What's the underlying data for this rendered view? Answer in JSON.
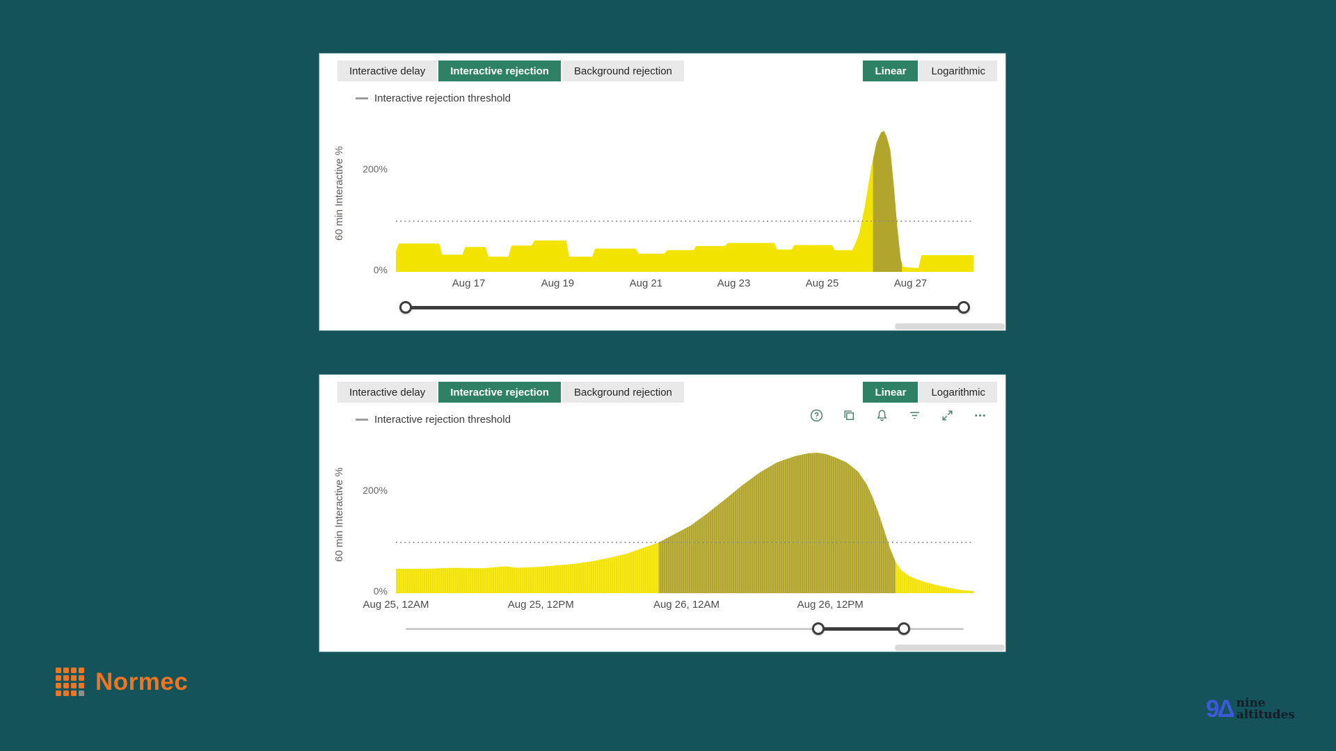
{
  "page": {
    "colors": {
      "background": "#14535a",
      "accent_green": "#2e8165",
      "panel_background": "#ffffff",
      "normec_orange": "#ee7623",
      "na_blue": "#3b5bd6"
    }
  },
  "panels": [
    {
      "tabs": [
        {
          "label": "Interactive delay",
          "active": false
        },
        {
          "label": "Interactive rejection",
          "active": true
        },
        {
          "label": "Background rejection",
          "active": false
        }
      ],
      "scale_tabs": [
        {
          "label": "Linear",
          "active": true
        },
        {
          "label": "Logarithmic",
          "active": false
        }
      ],
      "legend_label": "Interactive rejection threshold",
      "y_axis_label": "60 min Interactive %",
      "y_tick_top": "200%",
      "y_tick_bottom": "0%"
    },
    {
      "tabs": [
        {
          "label": "Interactive delay",
          "active": false
        },
        {
          "label": "Interactive rejection",
          "active": true
        },
        {
          "label": "Background rejection",
          "active": false
        }
      ],
      "scale_tabs": [
        {
          "label": "Linear",
          "active": true
        },
        {
          "label": "Logarithmic",
          "active": false
        }
      ],
      "legend_label": "Interactive rejection threshold",
      "y_axis_label": "60 min Interactive %",
      "y_tick_top": "200%",
      "y_tick_bottom": "0%",
      "toolbar_icons": [
        "help",
        "copy",
        "alert",
        "filter",
        "focus-mode",
        "more-options"
      ]
    }
  ],
  "chart_data": [
    {
      "type": "area",
      "title": "",
      "ylabel": "60 min Interactive %",
      "units": "percent",
      "ylim": [
        0,
        310
      ],
      "grid": false,
      "y_ticks": [
        {
          "label": "200%",
          "value": 200
        },
        {
          "label": "0%",
          "value": 0
        }
      ],
      "threshold": {
        "label": "Interactive rejection threshold",
        "value": 100
      },
      "x_ticks": [
        {
          "label": "Aug 17",
          "pos": 0.126
        },
        {
          "label": "Aug 19",
          "pos": 0.28
        },
        {
          "label": "Aug 21",
          "pos": 0.433
        },
        {
          "label": "Aug 23",
          "pos": 0.585
        },
        {
          "label": "Aug 25",
          "pos": 0.738
        },
        {
          "label": "Aug 27",
          "pos": 0.891
        }
      ],
      "points": [
        [
          0,
          40
        ],
        [
          0.005,
          56
        ],
        [
          0.075,
          56
        ],
        [
          0.08,
          34
        ],
        [
          0.115,
          34
        ],
        [
          0.12,
          49
        ],
        [
          0.155,
          49
        ],
        [
          0.16,
          30
        ],
        [
          0.195,
          30
        ],
        [
          0.2,
          52
        ],
        [
          0.235,
          52
        ],
        [
          0.24,
          62
        ],
        [
          0.295,
          62
        ],
        [
          0.3,
          30
        ],
        [
          0.34,
          30
        ],
        [
          0.345,
          46
        ],
        [
          0.415,
          46
        ],
        [
          0.42,
          36
        ],
        [
          0.465,
          36
        ],
        [
          0.47,
          43
        ],
        [
          0.515,
          43
        ],
        [
          0.52,
          51
        ],
        [
          0.57,
          51
        ],
        [
          0.575,
          57
        ],
        [
          0.655,
          57
        ],
        [
          0.66,
          44
        ],
        [
          0.685,
          44
        ],
        [
          0.69,
          53
        ],
        [
          0.755,
          53
        ],
        [
          0.76,
          43
        ],
        [
          0.79,
          43
        ],
        [
          0.795,
          55
        ],
        [
          0.802,
          75
        ],
        [
          0.812,
          130
        ],
        [
          0.822,
          200
        ],
        [
          0.832,
          255
        ],
        [
          0.84,
          275
        ],
        [
          0.845,
          278
        ],
        [
          0.85,
          266
        ],
        [
          0.856,
          240
        ],
        [
          0.862,
          170
        ],
        [
          0.868,
          90
        ],
        [
          0.874,
          25
        ],
        [
          0.878,
          10
        ],
        [
          0.9,
          8
        ],
        [
          0.905,
          8
        ],
        [
          0.91,
          33
        ],
        [
          1,
          33
        ]
      ],
      "highlight_band": [
        0.826,
        0.876
      ],
      "striped": false,
      "colors": {
        "area": "#f2e400",
        "highlight": "#b1a52c",
        "threshold": "#8a8a8a"
      },
      "slider": {
        "handles": [
          0,
          1
        ],
        "style": "full"
      }
    },
    {
      "type": "area",
      "title": "",
      "ylabel": "60 min Interactive %",
      "units": "percent",
      "ylim": [
        0,
        310
      ],
      "grid": false,
      "y_ticks": [
        {
          "label": "200%",
          "value": 200
        },
        {
          "label": "0%",
          "value": 0
        }
      ],
      "threshold": {
        "label": "Interactive rejection threshold",
        "value": 100
      },
      "x_ticks": [
        {
          "label": "Aug 25, 12AM",
          "pos": 0.0
        },
        {
          "label": "Aug 25, 12PM",
          "pos": 0.251
        },
        {
          "label": "Aug 26, 12AM",
          "pos": 0.503
        },
        {
          "label": "Aug 26, 12PM",
          "pos": 0.752
        }
      ],
      "points": [
        [
          0,
          48
        ],
        [
          0.05,
          48
        ],
        [
          0.1,
          50
        ],
        [
          0.15,
          49
        ],
        [
          0.19,
          53
        ],
        [
          0.21,
          50
        ],
        [
          0.25,
          52
        ],
        [
          0.28,
          55
        ],
        [
          0.31,
          58
        ],
        [
          0.34,
          63
        ],
        [
          0.37,
          70
        ],
        [
          0.4,
          78
        ],
        [
          0.43,
          90
        ],
        [
          0.455,
          100
        ],
        [
          0.48,
          115
        ],
        [
          0.51,
          133
        ],
        [
          0.54,
          158
        ],
        [
          0.57,
          185
        ],
        [
          0.6,
          213
        ],
        [
          0.63,
          238
        ],
        [
          0.66,
          258
        ],
        [
          0.69,
          270
        ],
        [
          0.715,
          276
        ],
        [
          0.73,
          277
        ],
        [
          0.745,
          274
        ],
        [
          0.76,
          268
        ],
        [
          0.78,
          258
        ],
        [
          0.8,
          240
        ],
        [
          0.815,
          215
        ],
        [
          0.825,
          190
        ],
        [
          0.835,
          160
        ],
        [
          0.845,
          125
        ],
        [
          0.855,
          90
        ],
        [
          0.865,
          62
        ],
        [
          0.875,
          45
        ],
        [
          0.89,
          33
        ],
        [
          0.91,
          24
        ],
        [
          0.935,
          16
        ],
        [
          0.96,
          10
        ],
        [
          0.98,
          6
        ],
        [
          1,
          4
        ]
      ],
      "highlight_band": [
        0.455,
        0.865
      ],
      "striped": true,
      "colors": {
        "area": "#f2e400",
        "highlight": "#b1a52c",
        "threshold": "#8a8a8a"
      },
      "slider": {
        "handles": [
          0.739,
          0.893
        ],
        "style": "range"
      }
    }
  ],
  "footer": {
    "normec_text": "Normec",
    "na_mark": "9Δ",
    "na_line1": "nine",
    "na_line2": "altitudes"
  }
}
